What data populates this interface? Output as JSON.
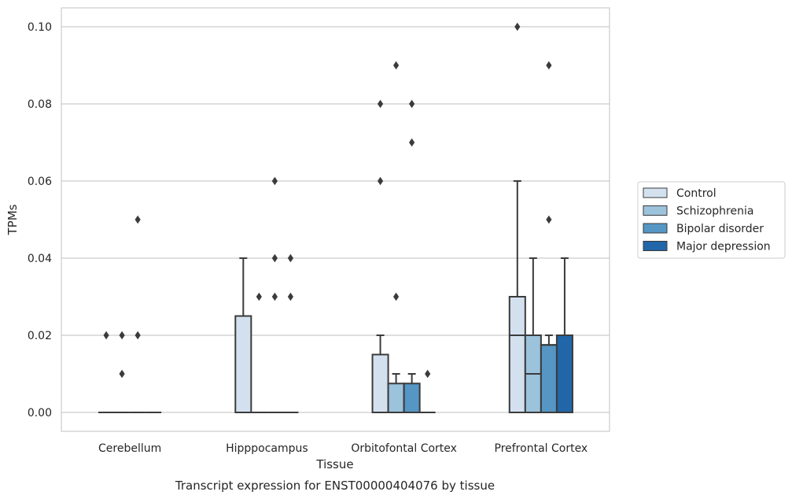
{
  "chart_data": {
    "type": "boxplot",
    "caption": "Transcript expression for ENST00000404076 by tissue",
    "xlabel": "Tissue",
    "ylabel": "TPMs",
    "ylim": [
      -0.005,
      0.105
    ],
    "yticks": [
      0.0,
      0.02,
      0.04,
      0.06,
      0.08,
      0.1
    ],
    "ytick_labels": [
      "0.00",
      "0.02",
      "0.04",
      "0.06",
      "0.08",
      "0.10"
    ],
    "grid": "horizontal",
    "legend_position": "right-outside",
    "categories": [
      "Cerebellum",
      "Hipppocampus",
      "Orbitofontal Cortex",
      "Prefrontal Cortex"
    ],
    "series": [
      {
        "name": "Control",
        "color": "#d3e1ef",
        "boxes": [
          {
            "q1": 0,
            "median": 0,
            "q3": 0,
            "whisker_low": 0,
            "whisker_high": 0,
            "outliers": [
              0.02
            ]
          },
          {
            "q1": 0,
            "median": 0,
            "q3": 0.025,
            "whisker_low": 0,
            "whisker_high": 0.04,
            "outliers": []
          },
          {
            "q1": 0,
            "median": 0,
            "q3": 0.015,
            "whisker_low": 0,
            "whisker_high": 0.02,
            "outliers": [
              0.06,
              0.08
            ]
          },
          {
            "q1": 0,
            "median": 0.02,
            "q3": 0.03,
            "whisker_low": 0,
            "whisker_high": 0.06,
            "outliers": [
              0.1
            ]
          }
        ]
      },
      {
        "name": "Schizophrenia",
        "color": "#9cc3dc",
        "boxes": [
          {
            "q1": 0,
            "median": 0,
            "q3": 0,
            "whisker_low": 0,
            "whisker_high": 0,
            "outliers": [
              0.01,
              0.02
            ]
          },
          {
            "q1": 0,
            "median": 0,
            "q3": 0,
            "whisker_low": 0,
            "whisker_high": 0,
            "outliers": [
              0.03
            ]
          },
          {
            "q1": 0,
            "median": 0,
            "q3": 0.0075,
            "whisker_low": 0,
            "whisker_high": 0.01,
            "outliers": [
              0.03,
              0.09
            ]
          },
          {
            "q1": 0,
            "median": 0.01,
            "q3": 0.02,
            "whisker_low": 0,
            "whisker_high": 0.04,
            "outliers": []
          }
        ]
      },
      {
        "name": "Bipolar disorder",
        "color": "#5596c4",
        "boxes": [
          {
            "q1": 0,
            "median": 0,
            "q3": 0,
            "whisker_low": 0,
            "whisker_high": 0,
            "outliers": [
              0.02,
              0.05
            ]
          },
          {
            "q1": 0,
            "median": 0,
            "q3": 0,
            "whisker_low": 0,
            "whisker_high": 0,
            "outliers": [
              0.03,
              0.04,
              0.06
            ]
          },
          {
            "q1": 0,
            "median": 0,
            "q3": 0.0075,
            "whisker_low": 0,
            "whisker_high": 0.01,
            "outliers": [
              0.07,
              0.08
            ]
          },
          {
            "q1": 0,
            "median": 0.0175,
            "q3": 0.0175,
            "whisker_low": 0,
            "whisker_high": 0.02,
            "outliers": [
              0.05,
              0.09
            ]
          }
        ]
      },
      {
        "name": "Major depression",
        "color": "#2166a8",
        "boxes": [
          {
            "q1": 0,
            "median": 0,
            "q3": 0,
            "whisker_low": 0,
            "whisker_high": 0,
            "outliers": []
          },
          {
            "q1": 0,
            "median": 0,
            "q3": 0,
            "whisker_low": 0,
            "whisker_high": 0,
            "outliers": [
              0.03,
              0.04
            ]
          },
          {
            "q1": 0,
            "median": 0,
            "q3": 0,
            "whisker_low": 0,
            "whisker_high": 0,
            "outliers": [
              0.01
            ]
          },
          {
            "q1": 0,
            "median": 0,
            "q3": 0.02,
            "whisker_low": 0,
            "whisker_high": 0.04,
            "outliers": []
          }
        ]
      }
    ]
  }
}
